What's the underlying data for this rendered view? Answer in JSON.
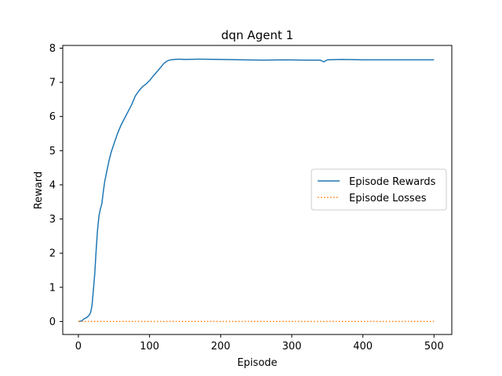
{
  "chart_data": {
    "type": "line",
    "title": "dqn Agent 1",
    "xlabel": "Episode",
    "ylabel": "Reward",
    "xlim": [
      -22,
      525
    ],
    "ylim": [
      -0.38,
      8.08
    ],
    "xticks": [
      0,
      100,
      200,
      300,
      400,
      500
    ],
    "yticks": [
      0,
      1,
      2,
      3,
      4,
      5,
      6,
      7,
      8
    ],
    "grid": false,
    "legend_position": "center-right",
    "series": [
      {
        "name": "Episode Rewards",
        "style": "solid",
        "color": "#1f77b4",
        "points": [
          [
            0,
            0.0
          ],
          [
            5,
            0.02
          ],
          [
            8,
            0.08
          ],
          [
            12,
            0.12
          ],
          [
            15,
            0.18
          ],
          [
            17,
            0.25
          ],
          [
            19,
            0.45
          ],
          [
            21,
            0.9
          ],
          [
            23,
            1.4
          ],
          [
            25,
            2.1
          ],
          [
            27,
            2.7
          ],
          [
            29,
            3.1
          ],
          [
            31,
            3.3
          ],
          [
            33,
            3.45
          ],
          [
            35,
            3.8
          ],
          [
            37,
            4.1
          ],
          [
            40,
            4.4
          ],
          [
            43,
            4.7
          ],
          [
            46,
            4.95
          ],
          [
            50,
            5.2
          ],
          [
            55,
            5.5
          ],
          [
            60,
            5.75
          ],
          [
            65,
            5.95
          ],
          [
            70,
            6.15
          ],
          [
            75,
            6.35
          ],
          [
            80,
            6.6
          ],
          [
            85,
            6.75
          ],
          [
            90,
            6.87
          ],
          [
            95,
            6.95
          ],
          [
            100,
            7.05
          ],
          [
            105,
            7.18
          ],
          [
            110,
            7.3
          ],
          [
            115,
            7.42
          ],
          [
            120,
            7.55
          ],
          [
            125,
            7.63
          ],
          [
            130,
            7.66
          ],
          [
            140,
            7.68
          ],
          [
            150,
            7.67
          ],
          [
            170,
            7.68
          ],
          [
            200,
            7.67
          ],
          [
            230,
            7.66
          ],
          [
            260,
            7.65
          ],
          [
            290,
            7.66
          ],
          [
            320,
            7.65
          ],
          [
            340,
            7.65
          ],
          [
            345,
            7.6
          ],
          [
            350,
            7.66
          ],
          [
            370,
            7.67
          ],
          [
            400,
            7.66
          ],
          [
            430,
            7.66
          ],
          [
            460,
            7.66
          ],
          [
            480,
            7.66
          ],
          [
            500,
            7.66
          ]
        ]
      },
      {
        "name": "Episode Losses",
        "style": "dotted",
        "color": "#ff7f0e",
        "points": [
          [
            0,
            0.0
          ],
          [
            500,
            0.0
          ]
        ]
      }
    ]
  }
}
